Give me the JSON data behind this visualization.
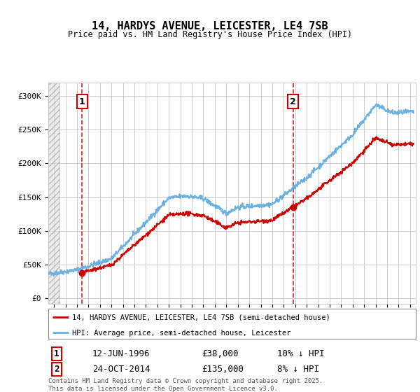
{
  "title": "14, HARDYS AVENUE, LEICESTER, LE4 7SB",
  "subtitle": "Price paid vs. HM Land Registry's House Price Index (HPI)",
  "legend_line1": "14, HARDYS AVENUE, LEICESTER, LE4 7SB (semi-detached house)",
  "legend_line2": "HPI: Average price, semi-detached house, Leicester",
  "annotation1": {
    "label": "1",
    "date_str": "12-JUN-1996",
    "price_str": "£38,000",
    "note": "10% ↓ HPI"
  },
  "annotation2": {
    "label": "2",
    "date_str": "24-OCT-2014",
    "price_str": "£135,000",
    "note": "8% ↓ HPI"
  },
  "marker1_x": 1996.45,
  "marker2_x": 2014.81,
  "marker1_y": 38000,
  "marker2_y": 135000,
  "hpi_color": "#6ab0e0",
  "price_color": "#cc0000",
  "ylabel_ticks": [
    "£0",
    "£50K",
    "£100K",
    "£150K",
    "£200K",
    "£250K",
    "£300K"
  ],
  "ylabel_values": [
    0,
    50000,
    100000,
    150000,
    200000,
    250000,
    300000
  ],
  "ylim": [
    -8000,
    320000
  ],
  "xlim_start": 1993.5,
  "xlim_end": 2025.5,
  "footer": "Contains HM Land Registry data © Crown copyright and database right 2025.\nThis data is licensed under the Open Government Licence v3.0.",
  "grid_color": "#cccccc"
}
